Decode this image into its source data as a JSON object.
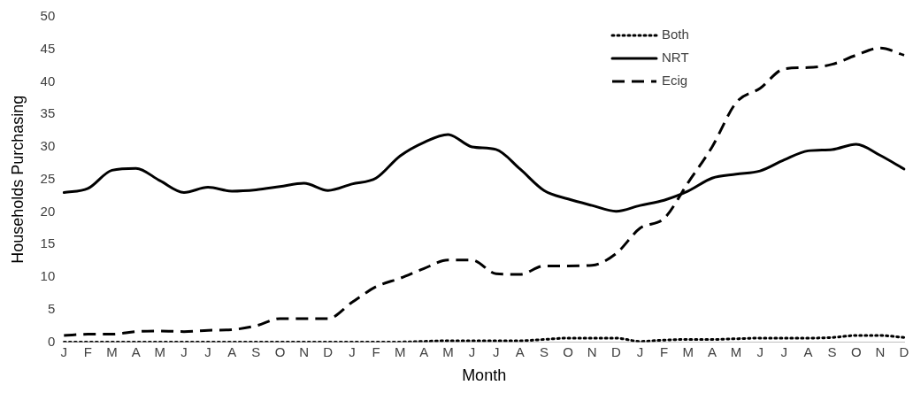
{
  "chart_data": {
    "type": "line",
    "xlabel": "Month",
    "ylabel": "Households Purchasing",
    "categories": [
      "J",
      "F",
      "M",
      "A",
      "M",
      "J",
      "J",
      "A",
      "S",
      "O",
      "N",
      "D",
      "J",
      "F",
      "M",
      "A",
      "M",
      "J",
      "J",
      "A",
      "S",
      "O",
      "N",
      "D",
      "J",
      "F",
      "M",
      "A",
      "M",
      "J",
      "J",
      "A",
      "S",
      "O",
      "N",
      "D"
    ],
    "series": [
      {
        "name": "Both",
        "color": "#000000",
        "line_style": "dotted",
        "values": [
          0,
          0,
          0,
          0,
          0,
          0,
          0,
          0,
          0,
          0,
          0,
          0,
          0,
          0,
          0,
          0.1,
          0.2,
          0.2,
          0.2,
          0.2,
          0.4,
          0.6,
          0.6,
          0.6,
          0.1,
          0.3,
          0.4,
          0.4,
          0.5,
          0.6,
          0.6,
          0.6,
          0.7,
          1,
          1,
          0.7
        ]
      },
      {
        "name": "NRT",
        "color": "#000000",
        "line_style": "solid",
        "values": [
          23,
          23.6,
          26.4,
          26.7,
          24.8,
          23,
          23.8,
          23.2,
          23.4,
          23.9,
          24.4,
          23.3,
          24.3,
          25.2,
          28.6,
          30.7,
          31.9,
          30,
          29.6,
          26.6,
          23.3,
          22,
          21,
          20.1,
          21,
          21.8,
          23.2,
          25.2,
          25.8,
          26.3,
          28,
          29.4,
          29.6,
          30.4,
          28.7,
          26.6
        ]
      },
      {
        "name": "Ecig",
        "color": "#000000",
        "line_style": "dashed",
        "values": [
          1,
          1.2,
          1.2,
          1.6,
          1.7,
          1.6,
          1.8,
          1.9,
          2.5,
          3.6,
          3.6,
          3.6,
          6.1,
          8.5,
          9.8,
          11.3,
          12.6,
          12.6,
          10.5,
          10.4,
          11.7,
          11.7,
          11.8,
          13.6,
          17.5,
          19,
          24.5,
          30,
          36.8,
          39,
          42,
          42.2,
          42.7,
          44.1,
          45.2,
          44.1
        ]
      }
    ],
    "ylim": [
      0,
      50
    ],
    "yticks": [
      0,
      5,
      10,
      15,
      20,
      25,
      30,
      35,
      40,
      45,
      50
    ],
    "grid": false,
    "legend": "top right",
    "marker": "none"
  }
}
